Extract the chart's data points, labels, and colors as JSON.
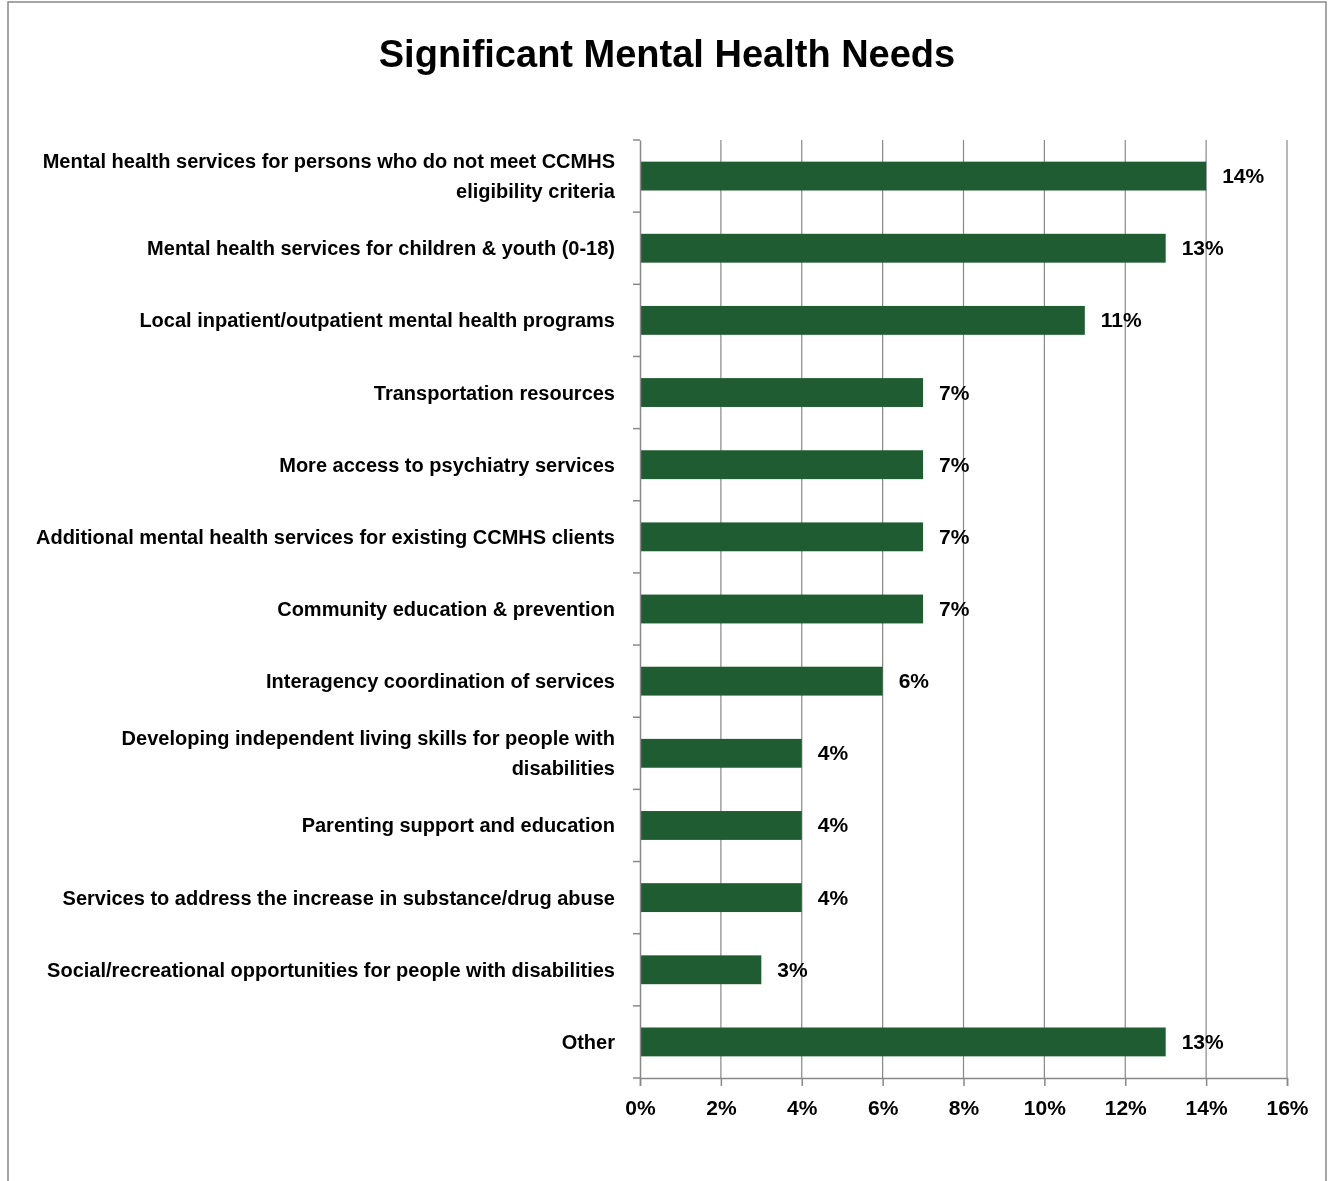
{
  "chart_data": {
    "type": "bar",
    "orientation": "horizontal",
    "title": "Significant Mental Health Needs",
    "categories": [
      "Mental health services for persons who do not meet CCMHS eligibility criteria",
      "Mental health services for children & youth (0-18)",
      "Local inpatient/outpatient mental health programs",
      "Transportation resources",
      "More access to psychiatry services",
      "Additional mental health services for existing CCMHS clients",
      "Community education & prevention",
      "Interagency coordination of services",
      "Developing independent living skills for people with disabilities",
      "Parenting support and education",
      "Services to address the increase in substance/drug abuse",
      "Social/recreational opportunities for people with disabilities",
      "Other"
    ],
    "values": [
      14,
      13,
      11,
      7,
      7,
      7,
      7,
      6,
      4,
      4,
      4,
      3,
      13
    ],
    "value_labels": [
      "14%",
      "13%",
      "11%",
      "7%",
      "7%",
      "7%",
      "7%",
      "6%",
      "4%",
      "4%",
      "4%",
      "3%",
      "13%"
    ],
    "color": "#1f5c32",
    "xlim": [
      0,
      16
    ],
    "xticks": [
      {
        "value": 0,
        "label": "0%"
      },
      {
        "value": 2,
        "label": "2%"
      },
      {
        "value": 4,
        "label": "4%"
      },
      {
        "value": 6,
        "label": "6%"
      },
      {
        "value": 8,
        "label": "8%"
      },
      {
        "value": 10,
        "label": "10%"
      },
      {
        "value": 12,
        "label": "12%"
      },
      {
        "value": 14,
        "label": "14%"
      },
      {
        "value": 16,
        "label": "16%"
      }
    ],
    "grid": "x"
  }
}
